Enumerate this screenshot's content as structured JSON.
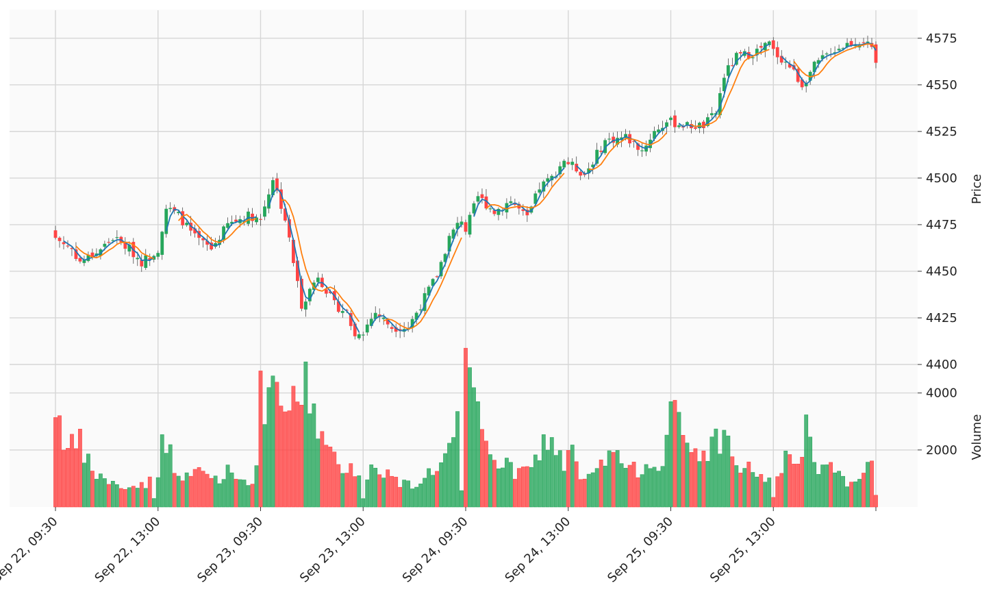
{
  "chart_data": {
    "type": "candlestick",
    "price_ylabel": "Price",
    "volume_ylabel": "Volume",
    "price_ylim": [
      4400,
      4590
    ],
    "price_ticks": [
      4400,
      4425,
      4450,
      4475,
      4500,
      4525,
      4550,
      4575
    ],
    "volume_ylim": [
      0,
      5000
    ],
    "volume_ticks": [
      2000,
      4000
    ],
    "x_ticks": [
      {
        "index": 0,
        "label": "Sep 22, 09:30"
      },
      {
        "index": 25,
        "label": "Sep 22, 13:00"
      },
      {
        "index": 50,
        "label": "Sep 23, 09:30"
      },
      {
        "index": 75,
        "label": "Sep 23, 13:00"
      },
      {
        "index": 100,
        "label": "Sep 24, 09:30"
      },
      {
        "index": 125,
        "label": "Sep 24, 13:00"
      },
      {
        "index": 150,
        "label": "Sep 25, 09:30"
      },
      {
        "index": 175,
        "label": "Sep 25, 13:00"
      },
      {
        "index": 200,
        "label": ""
      }
    ],
    "grid": true,
    "colors": {
      "up": "#26a65b",
      "down": "#ff4444",
      "ma_short": "#1f77b4",
      "ma_long": "#ff7f0e",
      "background": "#fafafa",
      "grid": "#d6d6d6"
    },
    "moving_averages": [
      3,
      6
    ],
    "price_waypoints": [
      [
        0,
        4468
      ],
      [
        4,
        4462
      ],
      [
        6,
        4455
      ],
      [
        10,
        4460
      ],
      [
        14,
        4468
      ],
      [
        18,
        4462
      ],
      [
        21,
        4455
      ],
      [
        24,
        4460
      ],
      [
        25,
        4462
      ],
      [
        27,
        4484
      ],
      [
        30,
        4480
      ],
      [
        34,
        4468
      ],
      [
        38,
        4462
      ],
      [
        42,
        4475
      ],
      [
        47,
        4480
      ],
      [
        50,
        4478
      ],
      [
        53,
        4500
      ],
      [
        56,
        4478
      ],
      [
        60,
        4432
      ],
      [
        64,
        4448
      ],
      [
        68,
        4432
      ],
      [
        71,
        4428
      ],
      [
        73,
        4415
      ],
      [
        74,
        4418
      ],
      [
        75,
        4418
      ],
      [
        78,
        4428
      ],
      [
        82,
        4420
      ],
      [
        86,
        4420
      ],
      [
        89,
        4432
      ],
      [
        93,
        4448
      ],
      [
        96,
        4468
      ],
      [
        99,
        4478
      ],
      [
        100,
        4472
      ],
      [
        103,
        4490
      ],
      [
        107,
        4482
      ],
      [
        111,
        4488
      ],
      [
        115,
        4478
      ],
      [
        118,
        4495
      ],
      [
        121,
        4500
      ],
      [
        124,
        4510
      ],
      [
        125,
        4508
      ],
      [
        129,
        4502
      ],
      [
        134,
        4520
      ],
      [
        139,
        4522
      ],
      [
        143,
        4515
      ],
      [
        146,
        4525
      ],
      [
        149,
        4530
      ],
      [
        150,
        4530
      ],
      [
        154,
        4528
      ],
      [
        158,
        4528
      ],
      [
        161,
        4535
      ],
      [
        163,
        4555
      ],
      [
        166,
        4565
      ],
      [
        170,
        4567
      ],
      [
        174,
        4572
      ],
      [
        175,
        4568
      ],
      [
        179,
        4560
      ],
      [
        182,
        4550
      ],
      [
        185,
        4560
      ],
      [
        189,
        4568
      ],
      [
        193,
        4572
      ],
      [
        197,
        4574
      ],
      [
        199,
        4568
      ],
      [
        200,
        4562
      ]
    ],
    "volume_waypoints": [
      [
        0,
        3600
      ],
      [
        3,
        2000
      ],
      [
        6,
        2200
      ],
      [
        9,
        1200
      ],
      [
        12,
        1000
      ],
      [
        15,
        700
      ],
      [
        19,
        700
      ],
      [
        23,
        900
      ],
      [
        24,
        300
      ],
      [
        25,
        900
      ],
      [
        26,
        3200
      ],
      [
        28,
        1800
      ],
      [
        31,
        900
      ],
      [
        35,
        1300
      ],
      [
        39,
        1000
      ],
      [
        43,
        1300
      ],
      [
        47,
        800
      ],
      [
        49,
        1300
      ],
      [
        50,
        3900
      ],
      [
        52,
        3400
      ],
      [
        54,
        4200
      ],
      [
        57,
        3200
      ],
      [
        61,
        4400
      ],
      [
        63,
        3500
      ],
      [
        66,
        2000
      ],
      [
        69,
        1400
      ],
      [
        72,
        1500
      ],
      [
        74,
        1200
      ],
      [
        75,
        300
      ],
      [
        77,
        1400
      ],
      [
        80,
        1300
      ],
      [
        84,
        800
      ],
      [
        88,
        800
      ],
      [
        91,
        1200
      ],
      [
        95,
        1700
      ],
      [
        98,
        2800
      ],
      [
        99,
        500
      ],
      [
        100,
        4600
      ],
      [
        102,
        3800
      ],
      [
        104,
        2600
      ],
      [
        108,
        1600
      ],
      [
        112,
        1200
      ],
      [
        116,
        1300
      ],
      [
        120,
        2500
      ],
      [
        124,
        1500
      ],
      [
        125,
        2300
      ],
      [
        128,
        900
      ],
      [
        132,
        1200
      ],
      [
        136,
        2000
      ],
      [
        140,
        1200
      ],
      [
        144,
        1500
      ],
      [
        148,
        1700
      ],
      [
        150,
        3400
      ],
      [
        152,
        2800
      ],
      [
        155,
        1900
      ],
      [
        159,
        2000
      ],
      [
        163,
        2600
      ],
      [
        166,
        1400
      ],
      [
        170,
        1300
      ],
      [
        174,
        900
      ],
      [
        175,
        300
      ],
      [
        178,
        2000
      ],
      [
        181,
        1300
      ],
      [
        183,
        2800
      ],
      [
        185,
        1300
      ],
      [
        189,
        1300
      ],
      [
        193,
        800
      ],
      [
        197,
        1400
      ],
      [
        199,
        1300
      ],
      [
        200,
        400
      ]
    ]
  }
}
